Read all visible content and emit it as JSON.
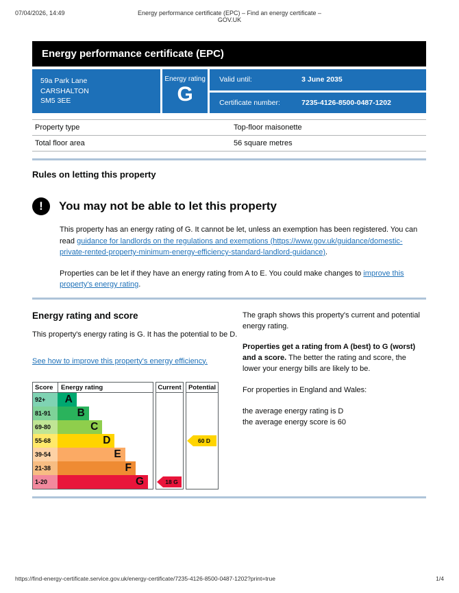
{
  "print_header": {
    "datetime": "07/04/2026, 14:49",
    "title": "Energy performance certificate (EPC) – Find an energy certificate – GOV.UK"
  },
  "banner": {
    "title": "Energy performance certificate (EPC)"
  },
  "colors": {
    "govuk_blue": "#1d70b8",
    "link_blue": "#1d70b8",
    "rule_blue": "#aec4d9"
  },
  "summary": {
    "address_lines": [
      "59a Park Lane",
      "CARSHALTON",
      "SM5 3EE"
    ],
    "energy_rating_label": "Energy rating",
    "energy_rating": "G",
    "valid_until_label": "Valid until:",
    "valid_until": "3 June 2035",
    "certificate_number_label": "Certificate number:",
    "certificate_number": "7235-4126-8500-0487-1202"
  },
  "property_table": {
    "rows": [
      {
        "label": "Property type",
        "value": "Top-floor maisonette"
      },
      {
        "label": "Total floor area",
        "value": "56 square metres"
      }
    ]
  },
  "rules_section": {
    "heading": "Rules on letting this property",
    "warning_icon": "!",
    "warning_heading": "You may not be able to let this property",
    "para1_pre": "This property has an energy rating of G. It cannot be let, unless an exemption has been registered. You can read ",
    "para1_link": "guidance for landlords on the regulations and exemptions (https://www.gov.uk/guidance/domestic-private-rented-property-minimum-energy-efficiency-standard-landlord-guidance)",
    "para1_post": ".",
    "para2_pre": "Properties can be let if they have an energy rating from A to E. You could make changes to ",
    "para2_link": "improve this property's energy rating",
    "para2_post": "."
  },
  "rating_section": {
    "heading": "Energy rating and score",
    "intro": "This property's energy rating is G. It has the potential to be D.",
    "improve_link": "See how to improve this property's energy efficiency.",
    "right_para1": "The graph shows this property's current and potential energy rating.",
    "right_para2_bold": "Properties get a rating from A (best) to G (worst) and a score.",
    "right_para2_rest": " The better the rating and score, the lower your energy bills are likely to be.",
    "right_para3": "For properties in England and Wales:",
    "right_avg_rating": "the average energy rating is D",
    "right_avg_score": "the average energy score is 60"
  },
  "chart_data": {
    "type": "epc-rating-bars",
    "columns": [
      "Score",
      "Energy rating",
      "Current",
      "Potential"
    ],
    "bands": [
      {
        "score": "92+",
        "rating": "A",
        "color": "#00a870",
        "score_bg": "#7fd3b3",
        "width_pct": 20
      },
      {
        "score": "81-91",
        "rating": "B",
        "color": "#2ab35c",
        "score_bg": "#7fd298",
        "width_pct": 33
      },
      {
        "score": "69-80",
        "rating": "C",
        "color": "#8fce4c",
        "score_bg": "#c0e595",
        "width_pct": 47
      },
      {
        "score": "55-68",
        "rating": "D",
        "color": "#ffd400",
        "score_bg": "#ffe96a",
        "width_pct": 60
      },
      {
        "score": "39-54",
        "rating": "E",
        "color": "#fbaa64",
        "score_bg": "#fdd2a6",
        "width_pct": 71
      },
      {
        "score": "21-38",
        "rating": "F",
        "color": "#ef8b33",
        "score_bg": "#f7bd83",
        "width_pct": 82
      },
      {
        "score": "1-20",
        "rating": "G",
        "color": "#e9153b",
        "score_bg": "#f2899d",
        "width_pct": 95
      }
    ],
    "current": {
      "label": "18 G",
      "band": "G",
      "color": "#e9153b"
    },
    "potential": {
      "label": "60 D",
      "band": "D",
      "color": "#ffd400"
    }
  },
  "print_footer": {
    "url": "https://find-energy-certificate.service.gov.uk/energy-certificate/7235-4126-8500-0487-1202?print=true",
    "page": "1/4"
  }
}
